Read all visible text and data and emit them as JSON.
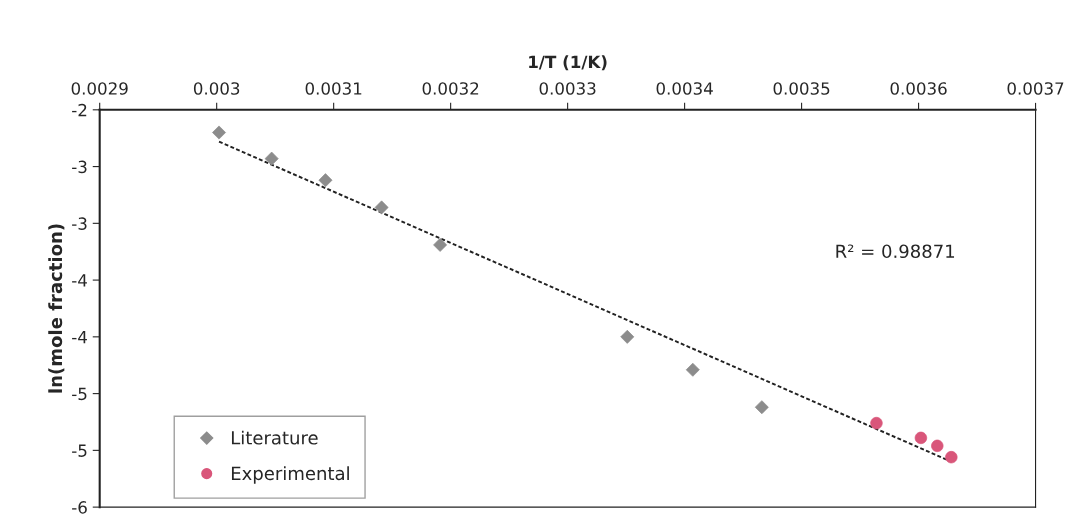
{
  "chart_data": {
    "type": "scatter",
    "xlabel": "1/T (1/K)",
    "ylabel": "ln(mole fraction)",
    "xlim": [
      0.0029,
      0.0037
    ],
    "xticks": [
      0.0029,
      0.003,
      0.0031,
      0.0032,
      0.0033,
      0.0034,
      0.0035,
      0.0036,
      0.0037
    ],
    "ylim": [
      -5.5,
      -2
    ],
    "yticks": [
      {
        "value": -2,
        "label": "-2"
      },
      {
        "value": -2.5,
        "label": "-3"
      },
      {
        "value": -3,
        "label": "-3"
      },
      {
        "value": -3.5,
        "label": "-4"
      },
      {
        "value": -4,
        "label": "-4"
      },
      {
        "value": -4.5,
        "label": "-5"
      },
      {
        "value": -5,
        "label": "-5"
      },
      {
        "value": -5.5,
        "label": "-6"
      }
    ],
    "grid": false,
    "legend": "bottom left",
    "annotations": [
      "R² = 0.98871"
    ],
    "series": [
      {
        "name": "Literature",
        "marker": "diamond",
        "color": "#8c8c8c",
        "x": [
          0.003002,
          0.003047,
          0.003093,
          0.003141,
          0.003191,
          0.003351,
          0.003407,
          0.003466
        ],
        "values": [
          -2.2,
          -2.43,
          -2.62,
          -2.86,
          -3.19,
          -4.0,
          -4.29,
          -4.62
        ]
      },
      {
        "name": "Experimental",
        "marker": "circle",
        "color": "#d9567a",
        "x": [
          0.003564,
          0.003602,
          0.003616,
          0.003628
        ],
        "values": [
          -4.76,
          -4.89,
          -4.96,
          -5.06
        ]
      },
      {
        "type": "line",
        "line_style": "dotted",
        "color": "#222222",
        "x": [
          0.003002,
          0.003628
        ],
        "values": [
          -2.28,
          -5.1
        ]
      }
    ]
  }
}
